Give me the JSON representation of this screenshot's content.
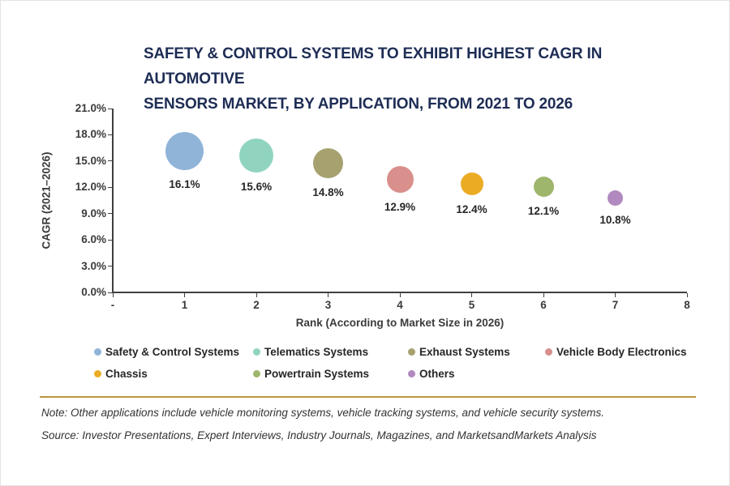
{
  "title": {
    "line1": "SAFETY & CONTROL SYSTEMS TO EXHIBIT HIGHEST CAGR IN AUTOMOTIVE",
    "line2": "SENSORS MARKET, BY APPLICATION, FROM 2021 TO 2026"
  },
  "chart_data": {
    "type": "scatter",
    "subtype": "bubble",
    "title": "SAFETY & CONTROL SYSTEMS TO EXHIBIT HIGHEST CAGR IN AUTOMOTIVE SENSORS MARKET, BY APPLICATION, FROM 2021 TO 2026",
    "xlabel": "Rank (According to Market Size in 2026)",
    "ylabel": "CAGR (2021–2026)",
    "xlim": [
      0,
      8
    ],
    "ylim": [
      0,
      21
    ],
    "x_tick_values": [
      0,
      1,
      2,
      3,
      4,
      5,
      6,
      7,
      8
    ],
    "x_tick_labels": [
      "-",
      "1",
      "2",
      "3",
      "4",
      "5",
      "6",
      "7",
      "8"
    ],
    "y_tick_values": [
      0,
      3,
      6,
      9,
      12,
      15,
      18,
      21
    ],
    "y_tick_labels": [
      "0.0%",
      "3.0%",
      "6.0%",
      "9.0%",
      "12.0%",
      "15.0%",
      "18.0%",
      "21.0%"
    ],
    "grid": false,
    "legend_position": "bottom",
    "points": [
      {
        "name": "Safety & Control Systems",
        "rank": 1,
        "cagr": 16.1,
        "label": "16.1%",
        "color": "#90B4D8",
        "radius": 23.5
      },
      {
        "name": "Telematics Systems",
        "rank": 2,
        "cagr": 15.6,
        "label": "15.6%",
        "color": "#90D4C0",
        "radius": 21
      },
      {
        "name": "Exhaust Systems",
        "rank": 3,
        "cagr": 14.8,
        "label": "14.8%",
        "color": "#A7A170",
        "radius": 18.5
      },
      {
        "name": "Vehicle Body Electronics",
        "rank": 4,
        "cagr": 12.9,
        "label": "12.9%",
        "color": "#D98F8B",
        "radius": 16.5
      },
      {
        "name": "Chassis",
        "rank": 5,
        "cagr": 12.4,
        "label": "12.4%",
        "color": "#EBAC24",
        "radius": 14
      },
      {
        "name": "Powertrain Systems",
        "rank": 6,
        "cagr": 12.1,
        "label": "12.1%",
        "color": "#9EB56C",
        "radius": 12.5
      },
      {
        "name": "Others",
        "rank": 7,
        "cagr": 10.8,
        "label": "10.8%",
        "color": "#B189BE",
        "radius": 9.5
      }
    ]
  },
  "note": "Note: Other applications include vehicle monitoring systems, vehicle tracking systems, and vehicle security systems.",
  "source": "Source: Investor Presentations, Expert Interviews, Industry Journals, Magazines, and MarketsandMarkets Analysis",
  "colors": {
    "title": "#1E2D55",
    "divider": "#B9973E",
    "axis": "#3F3F3F",
    "text": "#303030"
  }
}
